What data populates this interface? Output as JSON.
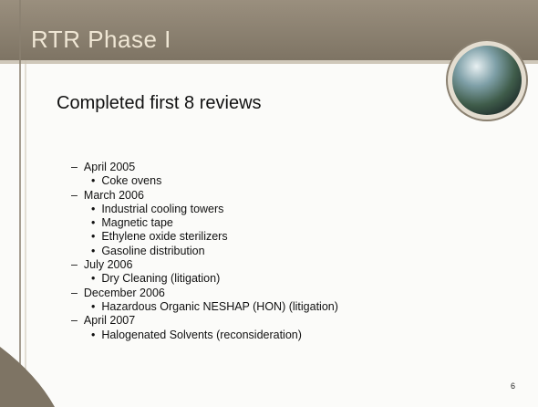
{
  "slide": {
    "title": "RTR Phase I",
    "heading": "Completed first 8 reviews",
    "groups": [
      {
        "date": "April 2005",
        "items": [
          "Coke ovens"
        ]
      },
      {
        "date": "March 2006",
        "items": [
          "Industrial cooling towers",
          "Magnetic tape",
          "Ethylene oxide sterilizers",
          "Gasoline distribution"
        ]
      },
      {
        "date": "July 2006",
        "items": [
          "Dry Cleaning (litigation)"
        ]
      },
      {
        "date": "December 2006",
        "items": [
          "Hazardous Organic NESHAP (HON) (litigation)"
        ]
      },
      {
        "date": "April 2007",
        "items": [
          "Halogenated Solvents (reconsideration)"
        ]
      }
    ],
    "page_number": "6"
  }
}
